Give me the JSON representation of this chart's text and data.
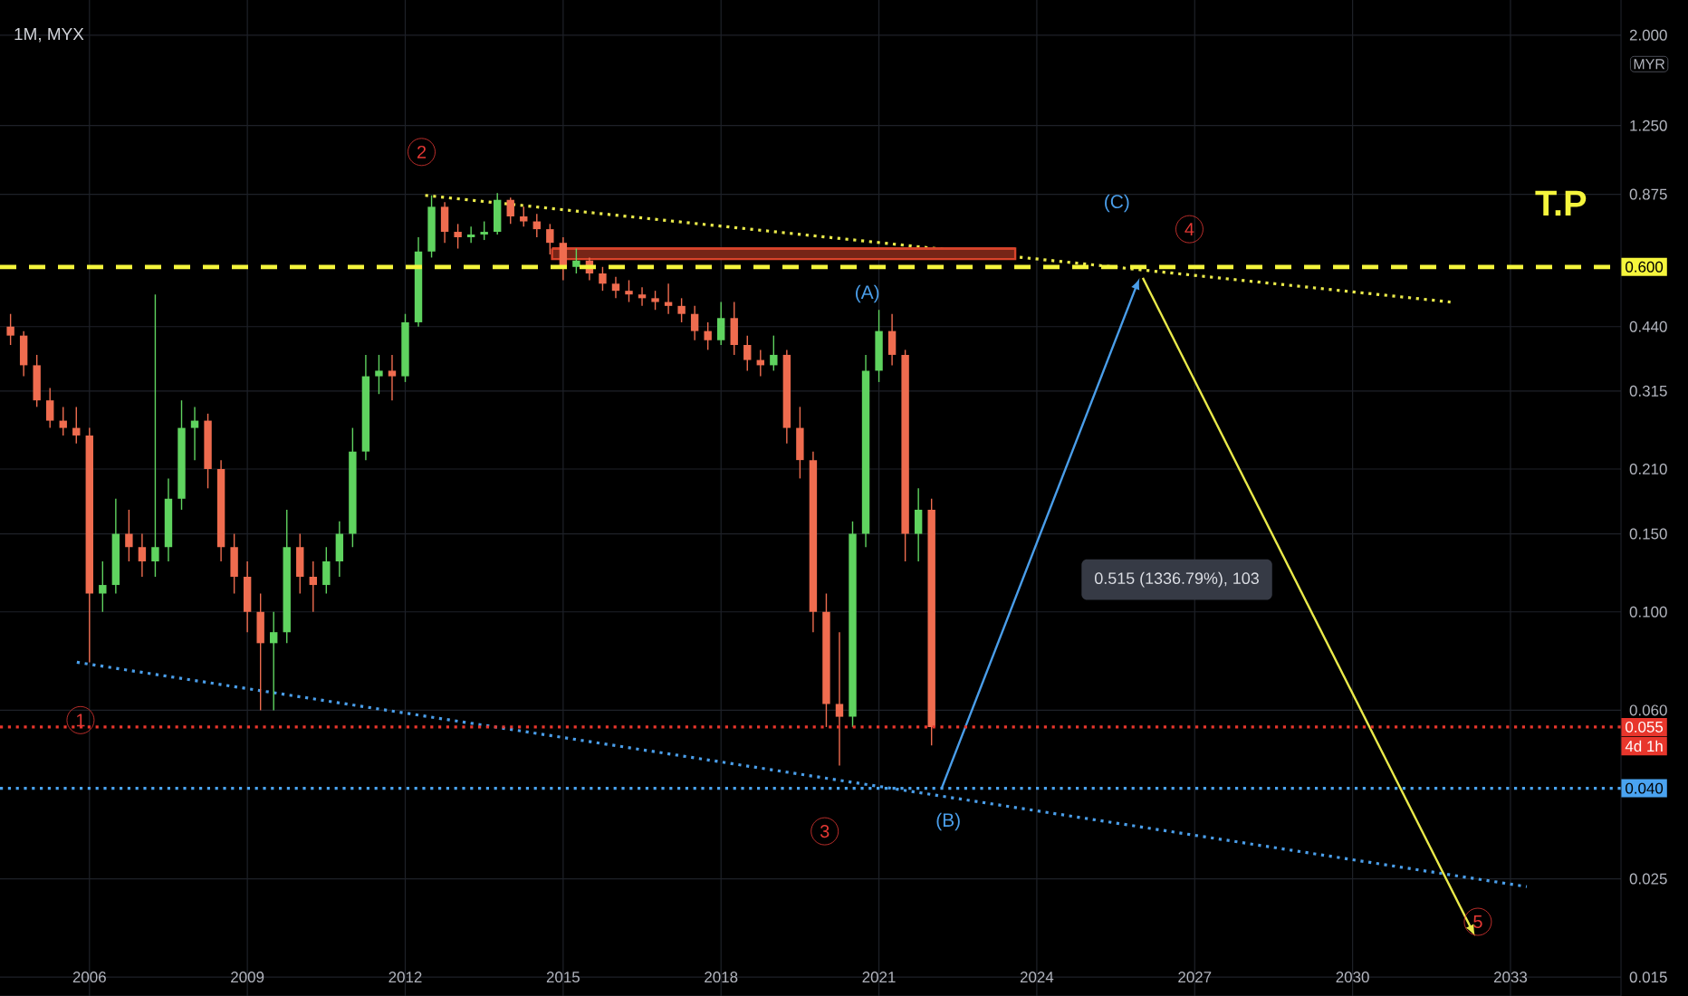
{
  "chart_data": {
    "type": "candlestick",
    "title": "1M, MYX",
    "ylabel": "MYR",
    "x": [
      2004.5,
      2004.75,
      2005.0,
      2005.25,
      2005.5,
      2005.75,
      2006.0,
      2006.25,
      2006.5,
      2006.75,
      2007.0,
      2007.25,
      2007.5,
      2007.75,
      2008.0,
      2008.25,
      2008.5,
      2008.75,
      2009.0,
      2009.25,
      2009.5,
      2009.75,
      2010.0,
      2010.25,
      2010.5,
      2010.75,
      2011.0,
      2011.25,
      2011.5,
      2011.75,
      2012.0,
      2012.25,
      2012.5,
      2012.75,
      2013.0,
      2013.25,
      2013.5,
      2013.75,
      2014.0,
      2014.25,
      2014.5,
      2014.75,
      2015.0,
      2015.25,
      2015.5,
      2015.75,
      2016.0,
      2016.25,
      2016.5,
      2016.75,
      2017.0,
      2017.25,
      2017.5,
      2017.75,
      2018.0,
      2018.25,
      2018.5,
      2018.75,
      2019.0,
      2019.25,
      2019.5,
      2019.75,
      2020.0,
      2020.25,
      2020.5,
      2020.75,
      2021.0,
      2021.25,
      2021.5,
      2021.75,
      2022.0
    ],
    "ohlc": [
      [
        0.44,
        0.47,
        0.4,
        0.42
      ],
      [
        0.42,
        0.43,
        0.34,
        0.36
      ],
      [
        0.36,
        0.38,
        0.29,
        0.3
      ],
      [
        0.3,
        0.32,
        0.26,
        0.27
      ],
      [
        0.27,
        0.29,
        0.25,
        0.26
      ],
      [
        0.26,
        0.29,
        0.24,
        0.25
      ],
      [
        0.25,
        0.26,
        0.077,
        0.11
      ],
      [
        0.11,
        0.13,
        0.1,
        0.115
      ],
      [
        0.115,
        0.18,
        0.11,
        0.15
      ],
      [
        0.15,
        0.17,
        0.13,
        0.14
      ],
      [
        0.14,
        0.15,
        0.12,
        0.13
      ],
      [
        0.13,
        0.52,
        0.12,
        0.14
      ],
      [
        0.14,
        0.2,
        0.13,
        0.18
      ],
      [
        0.18,
        0.3,
        0.17,
        0.26
      ],
      [
        0.26,
        0.29,
        0.22,
        0.27
      ],
      [
        0.27,
        0.28,
        0.19,
        0.21
      ],
      [
        0.21,
        0.22,
        0.13,
        0.14
      ],
      [
        0.14,
        0.15,
        0.11,
        0.12
      ],
      [
        0.12,
        0.13,
        0.09,
        0.1
      ],
      [
        0.1,
        0.11,
        0.06,
        0.085
      ],
      [
        0.085,
        0.1,
        0.06,
        0.09
      ],
      [
        0.09,
        0.17,
        0.085,
        0.14
      ],
      [
        0.14,
        0.15,
        0.11,
        0.12
      ],
      [
        0.12,
        0.13,
        0.1,
        0.115
      ],
      [
        0.115,
        0.14,
        0.11,
        0.13
      ],
      [
        0.13,
        0.16,
        0.12,
        0.15
      ],
      [
        0.15,
        0.26,
        0.14,
        0.23
      ],
      [
        0.23,
        0.38,
        0.22,
        0.34
      ],
      [
        0.34,
        0.38,
        0.31,
        0.35
      ],
      [
        0.35,
        0.38,
        0.3,
        0.34
      ],
      [
        0.34,
        0.47,
        0.33,
        0.45
      ],
      [
        0.45,
        0.7,
        0.44,
        0.65
      ],
      [
        0.65,
        0.87,
        0.63,
        0.82
      ],
      [
        0.82,
        0.84,
        0.68,
        0.72
      ],
      [
        0.72,
        0.75,
        0.66,
        0.7
      ],
      [
        0.7,
        0.74,
        0.68,
        0.71
      ],
      [
        0.71,
        0.76,
        0.69,
        0.72
      ],
      [
        0.72,
        0.88,
        0.71,
        0.85
      ],
      [
        0.85,
        0.86,
        0.75,
        0.78
      ],
      [
        0.78,
        0.82,
        0.74,
        0.76
      ],
      [
        0.76,
        0.79,
        0.7,
        0.73
      ],
      [
        0.73,
        0.75,
        0.64,
        0.68
      ],
      [
        0.68,
        0.7,
        0.56,
        0.6
      ],
      [
        0.6,
        0.66,
        0.58,
        0.62
      ],
      [
        0.62,
        0.63,
        0.56,
        0.58
      ],
      [
        0.58,
        0.6,
        0.53,
        0.55
      ],
      [
        0.55,
        0.57,
        0.51,
        0.53
      ],
      [
        0.53,
        0.56,
        0.5,
        0.52
      ],
      [
        0.52,
        0.54,
        0.49,
        0.51
      ],
      [
        0.51,
        0.53,
        0.48,
        0.5
      ],
      [
        0.5,
        0.55,
        0.47,
        0.49
      ],
      [
        0.49,
        0.51,
        0.45,
        0.47
      ],
      [
        0.47,
        0.49,
        0.41,
        0.43
      ],
      [
        0.43,
        0.45,
        0.39,
        0.41
      ],
      [
        0.41,
        0.5,
        0.4,
        0.46
      ],
      [
        0.46,
        0.5,
        0.38,
        0.4
      ],
      [
        0.4,
        0.42,
        0.35,
        0.37
      ],
      [
        0.37,
        0.39,
        0.34,
        0.36
      ],
      [
        0.36,
        0.42,
        0.35,
        0.38
      ],
      [
        0.38,
        0.39,
        0.24,
        0.26
      ],
      [
        0.26,
        0.29,
        0.2,
        0.22
      ],
      [
        0.22,
        0.23,
        0.09,
        0.1
      ],
      [
        0.1,
        0.11,
        0.055,
        0.062
      ],
      [
        0.062,
        0.09,
        0.045,
        0.058
      ],
      [
        0.058,
        0.16,
        0.055,
        0.15
      ],
      [
        0.15,
        0.38,
        0.14,
        0.35
      ],
      [
        0.35,
        0.48,
        0.33,
        0.43
      ],
      [
        0.43,
        0.47,
        0.36,
        0.38
      ],
      [
        0.38,
        0.39,
        0.13,
        0.15
      ],
      [
        0.15,
        0.19,
        0.13,
        0.17
      ],
      [
        0.17,
        0.18,
        0.05,
        0.055
      ]
    ],
    "colors": [
      "#ef6c4f",
      "#ef6c4f",
      "#ef6c4f",
      "#ef6c4f",
      "#ef6c4f",
      "#ef6c4f",
      "#ef6c4f",
      "#5fd35f",
      "#5fd35f",
      "#ef6c4f",
      "#ef6c4f",
      "#5fd35f",
      "#5fd35f",
      "#5fd35f",
      "#5fd35f",
      "#ef6c4f",
      "#ef6c4f",
      "#ef6c4f",
      "#ef6c4f",
      "#ef6c4f",
      "#5fd35f",
      "#5fd35f",
      "#ef6c4f",
      "#ef6c4f",
      "#5fd35f",
      "#5fd35f",
      "#5fd35f",
      "#5fd35f",
      "#5fd35f",
      "#ef6c4f",
      "#5fd35f",
      "#5fd35f",
      "#5fd35f",
      "#ef6c4f",
      "#ef6c4f",
      "#5fd35f",
      "#5fd35f",
      "#5fd35f",
      "#ef6c4f",
      "#ef6c4f",
      "#ef6c4f",
      "#ef6c4f",
      "#ef6c4f",
      "#5fd35f",
      "#ef6c4f",
      "#ef6c4f",
      "#ef6c4f",
      "#ef6c4f",
      "#ef6c4f",
      "#ef6c4f",
      "#ef6c4f",
      "#ef6c4f",
      "#ef6c4f",
      "#ef6c4f",
      "#5fd35f",
      "#ef6c4f",
      "#ef6c4f",
      "#ef6c4f",
      "#5fd35f",
      "#ef6c4f",
      "#ef6c4f",
      "#ef6c4f",
      "#ef6c4f",
      "#ef6c4f",
      "#5fd35f",
      "#5fd35f",
      "#5fd35f",
      "#ef6c4f",
      "#ef6c4f",
      "#5fd35f",
      "#ef6c4f"
    ],
    "series": [
      {
        "type": "line",
        "x": [
          2005.76,
          2033.31
        ],
        "values": [
          0.077,
          0.024
        ],
        "color": "#4a9eea",
        "line_style": "dotted"
      },
      {
        "type": "line",
        "x": [
          2012.38,
          2031.86
        ],
        "values": [
          0.87,
          0.5
        ],
        "color": "#eaea4a",
        "line_style": "dotted"
      },
      {
        "type": "line",
        "x": [
          2014.79,
          2023.59
        ],
        "values": [
          0.66,
          0.66
        ],
        "lower": [
          0.625,
          0.625
        ],
        "upper": [
          0.66,
          0.66
        ],
        "color": "#d9442b"
      }
    ],
    "ref_lines": [
      {
        "axis": "y",
        "value": 0.6,
        "label": "0.600",
        "color": "#f5f53c",
        "line_style": "dashed"
      },
      {
        "axis": "y",
        "value": 0.055,
        "label": "0.055",
        "color": "#e8362c",
        "line_style": "dotted"
      },
      {
        "axis": "y",
        "value": 0.04,
        "label": "0.040",
        "color": "#4aa3f0",
        "line_style": "dotted"
      }
    ],
    "annotations": [
      {
        "text": "1",
        "x": 2005.83,
        "y": 0.057
      },
      {
        "text": "2",
        "x": 2012.31,
        "y": 1.09
      },
      {
        "text": "3",
        "x": 2019.97,
        "y": 0.032
      },
      {
        "text": "4",
        "x": 2026.9,
        "y": 0.73
      },
      {
        "text": "5",
        "x": 2032.38,
        "y": 0.02
      },
      "(A)",
      "(B)",
      "(C)",
      "0.515 (1336.79%), 103",
      "T.P",
      "4d 1h"
    ],
    "xlim": [
      2004.3,
      2035.1
    ],
    "ylim": [
      0.0136,
      2.4
    ],
    "log": "y",
    "grid": true,
    "xticks": [
      2006,
      2009,
      2012,
      2015,
      2018,
      2021,
      2024,
      2027,
      2030,
      2033
    ],
    "yticks": [
      {
        "value": 0.015,
        "label": "0.015"
      },
      {
        "value": 0.025,
        "label": "0.025"
      },
      {
        "value": 0.06,
        "label": "0.060"
      },
      {
        "value": 0.1,
        "label": "0.100"
      },
      {
        "value": 0.15,
        "label": "0.150"
      },
      {
        "value": 0.21,
        "label": "0.210"
      },
      {
        "value": 0.315,
        "label": "0.315"
      },
      {
        "value": 0.44,
        "label": "0.440"
      },
      {
        "value": 0.875,
        "label": "0.875"
      },
      {
        "value": 1.25,
        "label": "1.250"
      },
      {
        "value": 2,
        "label": "2.000"
      }
    ]
  }
}
